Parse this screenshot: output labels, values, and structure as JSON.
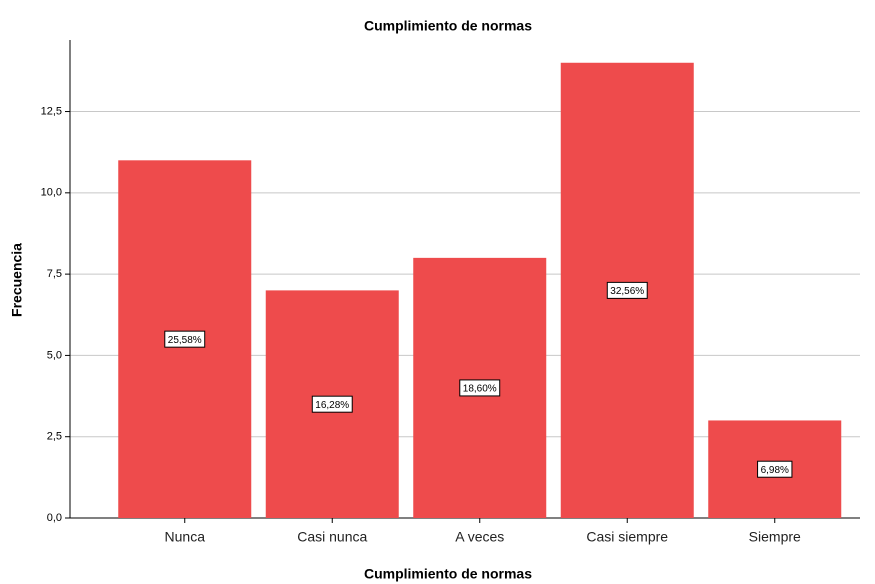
{
  "chart_data": {
    "type": "bar",
    "title": "Cumplimiento de normas",
    "x_label": "Cumplimiento de normas",
    "y_label": "Frecuencia",
    "categories": [
      "Nunca",
      "Casi nunca",
      "A veces",
      "Casi siempre",
      "Siempre"
    ],
    "values": [
      11,
      7,
      8,
      14,
      3
    ],
    "percentages": [
      25.58,
      16.28,
      18.6,
      32.56,
      6.98
    ],
    "percentage_labels": [
      "25,58%",
      "16,28%",
      "18,60%",
      "32,56%",
      "6,98%"
    ],
    "color": "#ee4b4c",
    "ylim": [
      0,
      14.7
    ],
    "yticks": [
      {
        "value": 0,
        "label": "0,0"
      },
      {
        "value": 2.5,
        "label": "2,5"
      },
      {
        "value": 5,
        "label": "5,0"
      },
      {
        "value": 7.5,
        "label": "7,5"
      },
      {
        "value": 10,
        "label": "10,0"
      },
      {
        "value": 12.5,
        "label": "12,5"
      }
    ],
    "grid": true
  }
}
